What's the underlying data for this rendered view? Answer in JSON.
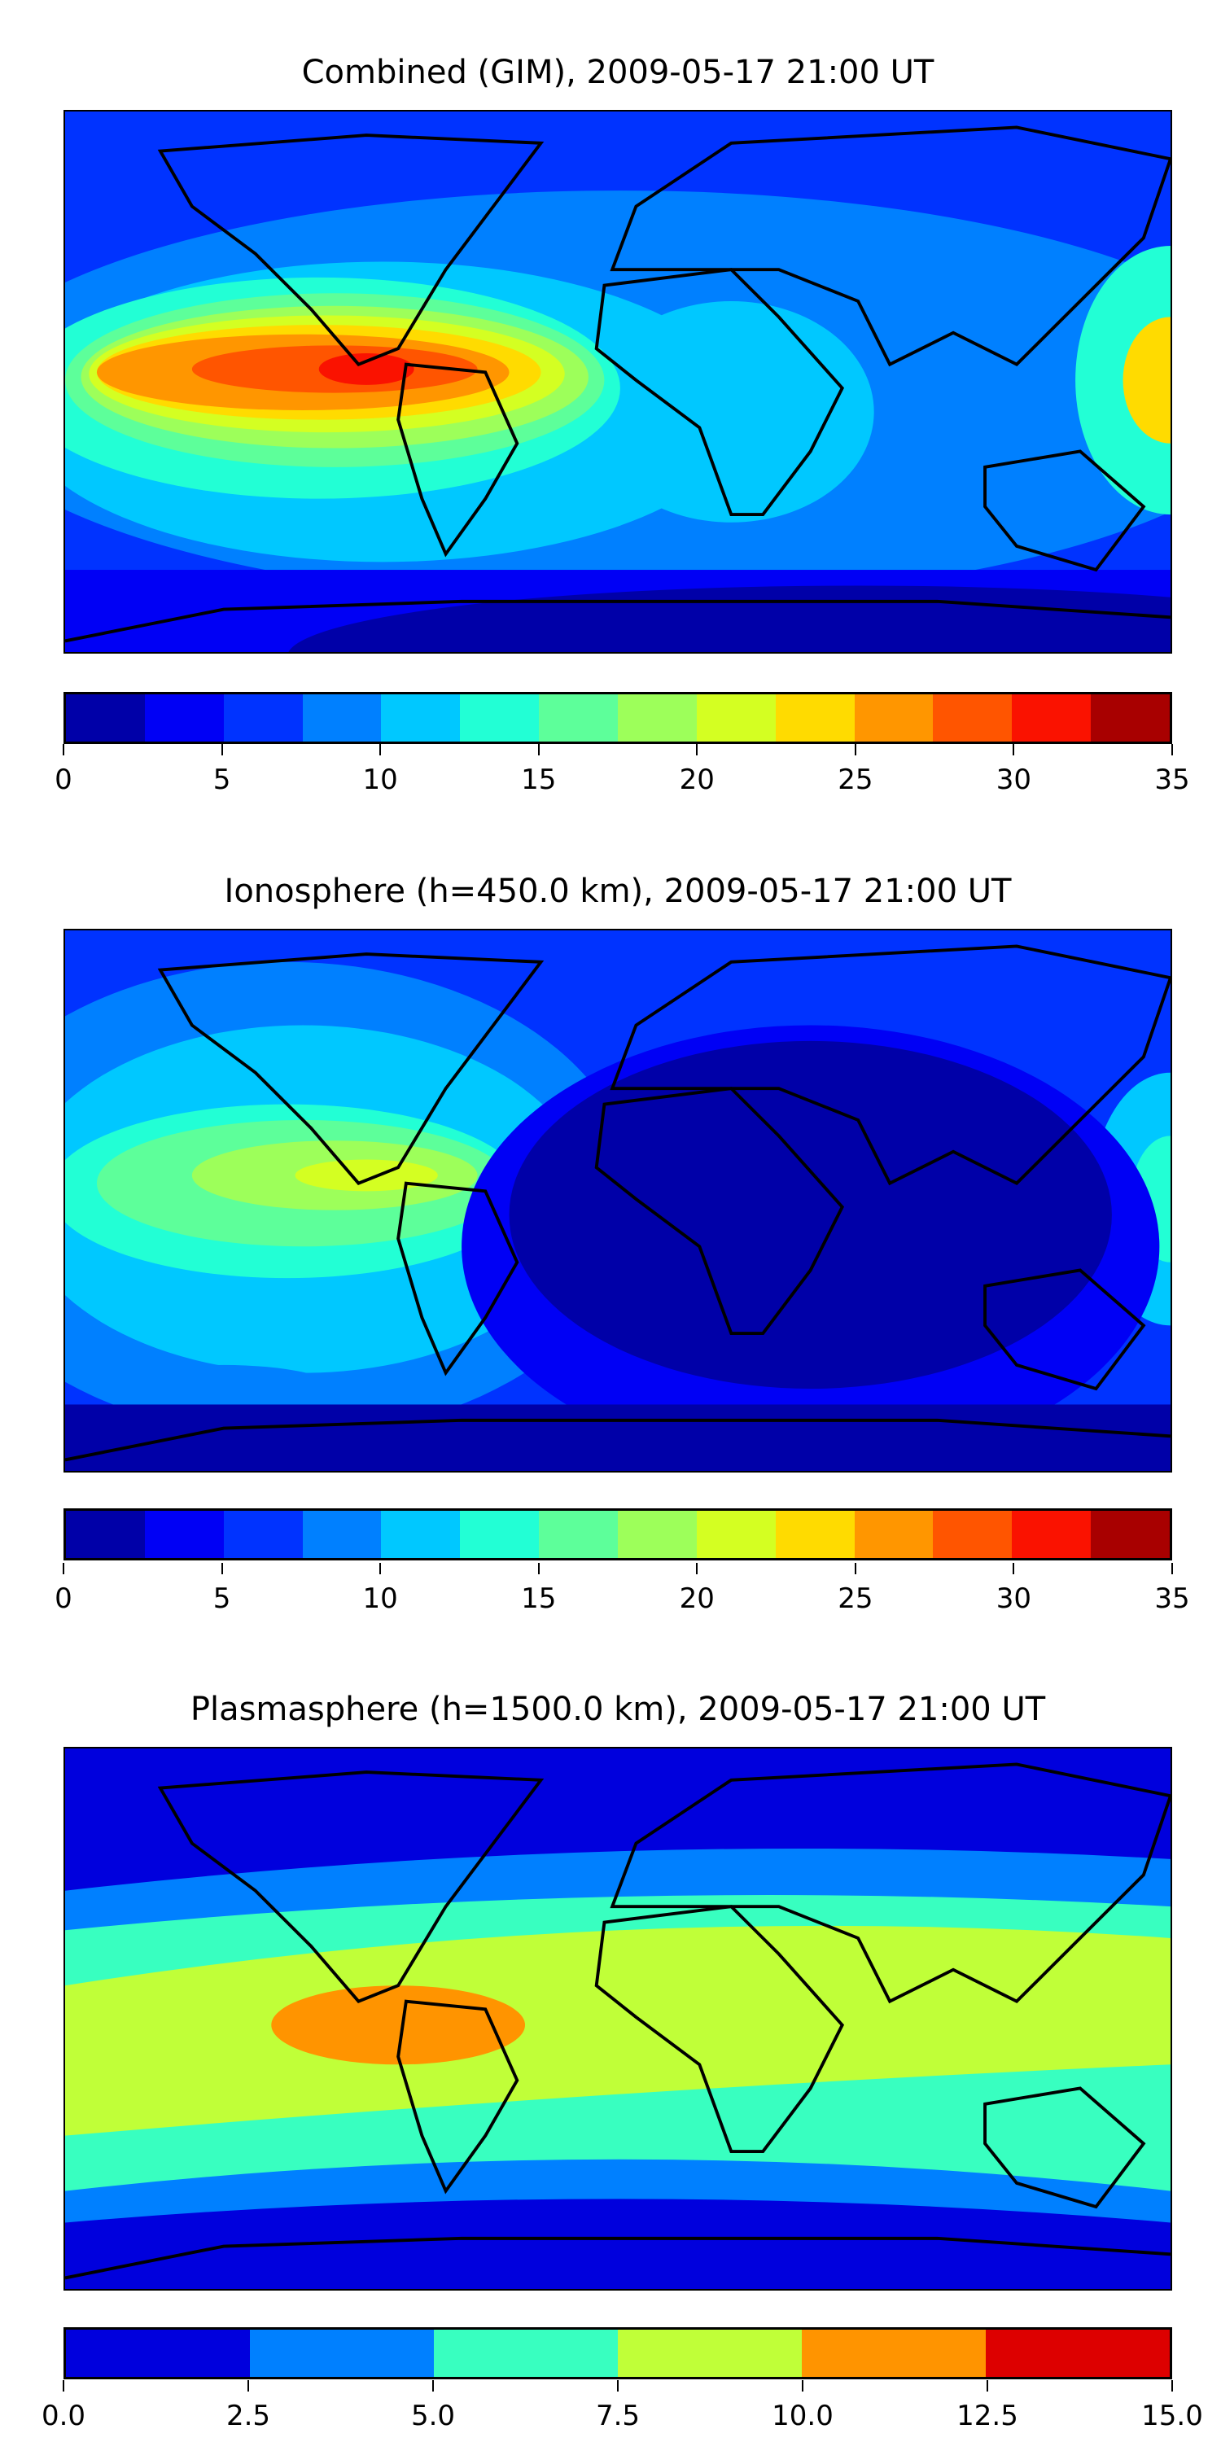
{
  "chart_data": [
    {
      "type": "heatmap",
      "title": "Combined (GIM), 2009-05-17 21:00 UT",
      "colorbar": {
        "levels": [
          0,
          2.5,
          5,
          7.5,
          10,
          12.5,
          15,
          17.5,
          20,
          22.5,
          25,
          27.5,
          30,
          32.5,
          35
        ],
        "colors": [
          "#0000a8",
          "#0000f5",
          "#0033ff",
          "#0080ff",
          "#00c8ff",
          "#22ffd5",
          "#5dff9a",
          "#9dff5a",
          "#d4ff22",
          "#ffdb00",
          "#ff9600",
          "#ff5500",
          "#fa1200",
          "#a80000"
        ],
        "tick_labels": [
          "0",
          "5",
          "10",
          "15",
          "20",
          "25",
          "30",
          "35"
        ],
        "range": [
          0,
          35
        ]
      }
    },
    {
      "type": "heatmap",
      "title": "Ionosphere  (h=450.0 km), 2009-05-17 21:00 UT",
      "colorbar": {
        "levels": [
          0,
          2.5,
          5,
          7.5,
          10,
          12.5,
          15,
          17.5,
          20,
          22.5,
          25,
          27.5,
          30,
          32.5,
          35
        ],
        "colors": [
          "#0000a8",
          "#0000f5",
          "#0033ff",
          "#0080ff",
          "#00c8ff",
          "#22ffd5",
          "#5dff9a",
          "#9dff5a",
          "#d4ff22",
          "#ffdb00",
          "#ff9600",
          "#ff5500",
          "#fa1200",
          "#a80000"
        ],
        "tick_labels": [
          "0",
          "5",
          "10",
          "15",
          "20",
          "25",
          "30",
          "35"
        ],
        "range": [
          0,
          35
        ]
      }
    },
    {
      "type": "heatmap",
      "title": "Plasmasphere (h=1500.0 km), 2009-05-17 21:00 UT",
      "colorbar": {
        "levels": [
          0,
          2.5,
          5,
          7.5,
          10,
          12.5,
          15
        ],
        "colors": [
          "#0000dd",
          "#0080ff",
          "#38ffc0",
          "#c0ff38",
          "#ff9400",
          "#dd0000"
        ],
        "tick_labels": [
          "0.0",
          "2.5",
          "5.0",
          "7.5",
          "10.0",
          "12.5",
          "15.0"
        ],
        "range": [
          0,
          15
        ]
      }
    }
  ]
}
